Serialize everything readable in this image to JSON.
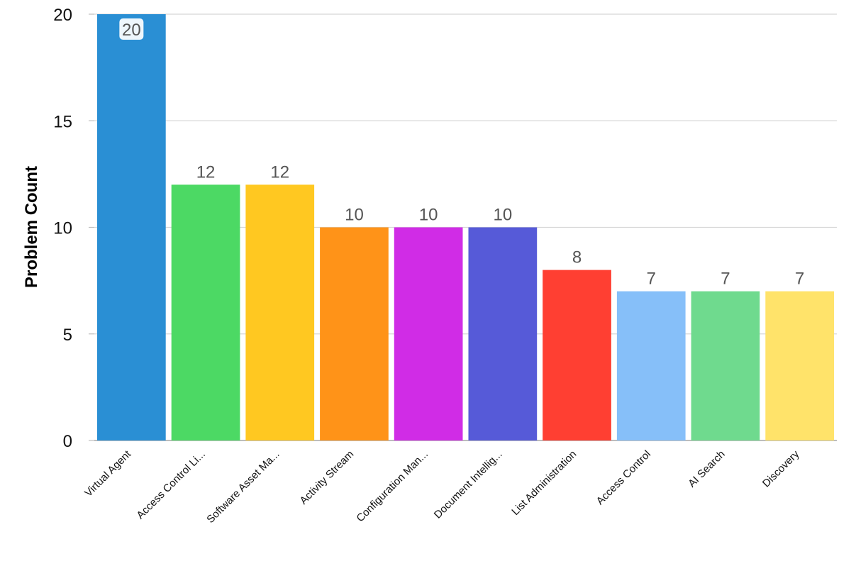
{
  "chart_data": {
    "type": "bar",
    "ylabel": "Problem Count",
    "ylim": [
      0,
      20
    ],
    "yticks": [
      0,
      5,
      10,
      15,
      20
    ],
    "grid": true,
    "legend": "none",
    "categories": [
      "Virtual Agent",
      "Access Control Li...",
      "Software Asset Ma...",
      "Activity Stream",
      "Configuration Man...",
      "Document Intellig...",
      "List Administration",
      "Access Control",
      "AI Search",
      "Discovery"
    ],
    "values": [
      20,
      12,
      12,
      10,
      10,
      10,
      8,
      7,
      7,
      7
    ],
    "colors": [
      "#2a8fd4",
      "#4cd964",
      "#ffc821",
      "#ff9318",
      "#d02ce6",
      "#565ad8",
      "#ff3f32",
      "#86bff9",
      "#6fda8e",
      "#ffe36a"
    ]
  }
}
